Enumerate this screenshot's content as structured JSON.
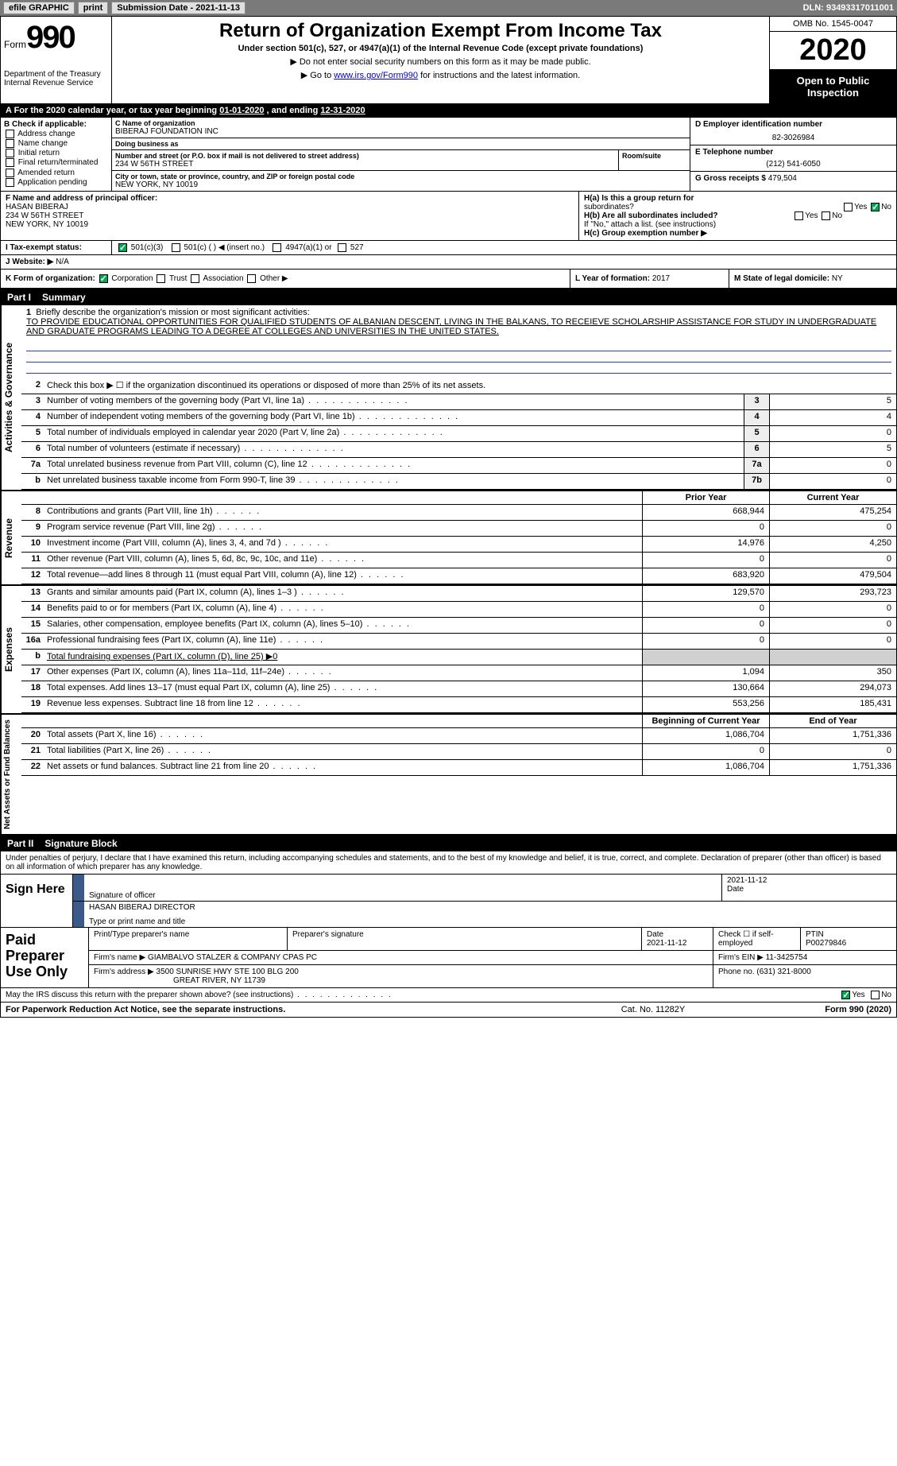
{
  "topbar": {
    "efile": "efile GRAPHIC",
    "print": "print",
    "sub_lbl": "Submission Date - ",
    "sub_date": "2021-11-13",
    "dln_lbl": "DLN:",
    "dln": "93493317011001"
  },
  "header": {
    "form_word": "Form",
    "form_num": "990",
    "dept": "Department of the Treasury",
    "irs": "Internal Revenue Service",
    "title": "Return of Organization Exempt From Income Tax",
    "subtitle": "Under section 501(c), 527, or 4947(a)(1) of the Internal Revenue Code (except private foundations)",
    "note1": "▶ Do not enter social security numbers on this form as it may be made public.",
    "note2_pre": "▶ Go to ",
    "note2_link": "www.irs.gov/Form990",
    "note2_post": " for instructions and the latest information.",
    "omb": "OMB No. 1545-0047",
    "year": "2020",
    "inspection": "Open to Public Inspection"
  },
  "period": {
    "label_a": "A For the 2020 calendar year, or tax year beginning ",
    "begin": "01-01-2020",
    "mid": " , and ending ",
    "end": "12-31-2020"
  },
  "box_b": {
    "hdr": "B Check if applicable:",
    "opts": [
      "Address change",
      "Name change",
      "Initial return",
      "Final return/terminated",
      "Amended return",
      "Application pending"
    ]
  },
  "box_c": {
    "lbl": "C Name of organization",
    "name": "BIBERAJ FOUNDATION INC",
    "dba_lbl": "Doing business as",
    "dba": "",
    "addr_lbl": "Number and street (or P.O. box if mail is not delivered to street address)",
    "room_lbl": "Room/suite",
    "addr": "234 W 56TH STREET",
    "city_lbl": "City or town, state or province, country, and ZIP or foreign postal code",
    "city": "NEW YORK, NY  10019"
  },
  "box_d": {
    "lbl": "D Employer identification number",
    "ein": "82-3026984"
  },
  "box_e": {
    "lbl": "E Telephone number",
    "tel": "(212) 541-6050"
  },
  "box_g": {
    "lbl": "G Gross receipts $",
    "amt": "479,504"
  },
  "box_f": {
    "lbl": "F Name and address of principal officer:",
    "name": "HASAN BIBERAJ",
    "addr1": "234 W 56TH STREET",
    "addr2": "NEW YORK, NY  10019"
  },
  "box_h": {
    "a_lbl": "H(a)  Is this a group return for",
    "a_lbl2": "subordinates?",
    "a_yes": "Yes",
    "a_no": "No",
    "b_lbl": "H(b)  Are all subordinates included?",
    "b_yes": "Yes",
    "b_no": "No",
    "b_note": "If \"No,\" attach a list. (see instructions)",
    "c_lbl": "H(c)  Group exemption number ▶"
  },
  "row_i": {
    "lbl": "I  Tax-exempt status:",
    "o1": "501(c)(3)",
    "o2": "501(c) (  ) ◀ (insert no.)",
    "o3": "4947(a)(1) or",
    "o4": "527"
  },
  "row_j": {
    "lbl": "J  Website: ▶",
    "val": "N/A"
  },
  "row_k": {
    "lbl": "K Form of organization:",
    "o1": "Corporation",
    "o2": "Trust",
    "o3": "Association",
    "o4": "Other ▶",
    "l_lbl": "L Year of formation:",
    "l_val": "2017",
    "m_lbl": "M State of legal domicile:",
    "m_val": "NY"
  },
  "part1": {
    "num": "Part I",
    "title": "Summary"
  },
  "mission": {
    "num": "1",
    "lbl": "Briefly describe the organization's mission or most significant activities:",
    "text": "TO PROVIDE EDUCATIONAL OPPORTUNITIES FOR QUALIFIED STUDENTS OF ALBANIAN DESCENT, LIVING IN THE BALKANS, TO RECEIEVE SCHOLARSHIP ASSISTANCE FOR STUDY IN UNDERGRADUATE AND GRADUATE PROGRAMS LEADING TO A DEGREE AT COLLEGES AND UNIVERSITIES IN THE UNITED STATES."
  },
  "gov_lines": [
    {
      "n": "2",
      "t": "Check this box ▶ ☐ if the organization discontinued its operations or disposed of more than 25% of its net assets."
    },
    {
      "n": "3",
      "t": "Number of voting members of the governing body (Part VI, line 1a)",
      "box": "3",
      "v": "5"
    },
    {
      "n": "4",
      "t": "Number of independent voting members of the governing body (Part VI, line 1b)",
      "box": "4",
      "v": "4"
    },
    {
      "n": "5",
      "t": "Total number of individuals employed in calendar year 2020 (Part V, line 2a)",
      "box": "5",
      "v": "0"
    },
    {
      "n": "6",
      "t": "Total number of volunteers (estimate if necessary)",
      "box": "6",
      "v": "5"
    },
    {
      "n": "7a",
      "t": "Total unrelated business revenue from Part VIII, column (C), line 12",
      "box": "7a",
      "v": "0"
    },
    {
      "n": "b",
      "t": "Net unrelated business taxable income from Form 990-T, line 39",
      "box": "7b",
      "v": "0"
    }
  ],
  "side_labels": {
    "ag": "Activities & Governance",
    "rev": "Revenue",
    "exp": "Expenses",
    "na": "Net Assets or Fund Balances"
  },
  "col_hdrs": {
    "prior": "Prior Year",
    "current": "Current Year",
    "bocy": "Beginning of Current Year",
    "eoy": "End of Year"
  },
  "rev_lines": [
    {
      "n": "8",
      "t": "Contributions and grants (Part VIII, line 1h)",
      "p": "668,944",
      "c": "475,254"
    },
    {
      "n": "9",
      "t": "Program service revenue (Part VIII, line 2g)",
      "p": "0",
      "c": "0"
    },
    {
      "n": "10",
      "t": "Investment income (Part VIII, column (A), lines 3, 4, and 7d )",
      "p": "14,976",
      "c": "4,250"
    },
    {
      "n": "11",
      "t": "Other revenue (Part VIII, column (A), lines 5, 6d, 8c, 9c, 10c, and 11e)",
      "p": "0",
      "c": "0"
    },
    {
      "n": "12",
      "t": "Total revenue—add lines 8 through 11 (must equal Part VIII, column (A), line 12)",
      "p": "683,920",
      "c": "479,504"
    }
  ],
  "exp_lines": [
    {
      "n": "13",
      "t": "Grants and similar amounts paid (Part IX, column (A), lines 1–3 )",
      "p": "129,570",
      "c": "293,723"
    },
    {
      "n": "14",
      "t": "Benefits paid to or for members (Part IX, column (A), line 4)",
      "p": "0",
      "c": "0"
    },
    {
      "n": "15",
      "t": "Salaries, other compensation, employee benefits (Part IX, column (A), lines 5–10)",
      "p": "0",
      "c": "0"
    },
    {
      "n": "16a",
      "t": "Professional fundraising fees (Part IX, column (A), line 11e)",
      "p": "0",
      "c": "0"
    },
    {
      "n": "b",
      "t": "Total fundraising expenses (Part IX, column (D), line 25) ▶0",
      "p": "",
      "c": "",
      "nocols": true
    },
    {
      "n": "17",
      "t": "Other expenses (Part IX, column (A), lines 11a–11d, 11f–24e)",
      "p": "1,094",
      "c": "350"
    },
    {
      "n": "18",
      "t": "Total expenses. Add lines 13–17 (must equal Part IX, column (A), line 25)",
      "p": "130,664",
      "c": "294,073"
    },
    {
      "n": "19",
      "t": "Revenue less expenses. Subtract line 18 from line 12",
      "p": "553,256",
      "c": "185,431"
    }
  ],
  "na_lines": [
    {
      "n": "20",
      "t": "Total assets (Part X, line 16)",
      "p": "1,086,704",
      "c": "1,751,336"
    },
    {
      "n": "21",
      "t": "Total liabilities (Part X, line 26)",
      "p": "0",
      "c": "0"
    },
    {
      "n": "22",
      "t": "Net assets or fund balances. Subtract line 21 from line 20",
      "p": "1,086,704",
      "c": "1,751,336"
    }
  ],
  "part2": {
    "num": "Part II",
    "title": "Signature Block"
  },
  "sig": {
    "decl": "Under penalties of perjury, I declare that I have examined this return, including accompanying schedules and statements, and to the best of my knowledge and belief, it is true, correct, and complete. Declaration of preparer (other than officer) is based on all information of which preparer has any knowledge.",
    "sign_here": "Sign Here",
    "sig_lbl": "Signature of officer",
    "date_lbl": "Date",
    "date": "2021-11-12",
    "name": "HASAN BIBERAJ DIRECTOR",
    "name_lbl": "Type or print name and title"
  },
  "prep": {
    "hdr": "Paid Preparer Use Only",
    "pn_lbl": "Print/Type preparer's name",
    "ps_lbl": "Preparer's signature",
    "pd_lbl": "Date",
    "pd": "2021-11-12",
    "ck_lbl": "Check ☐ if self-employed",
    "ptin_lbl": "PTIN",
    "ptin": "P00279846",
    "firm_name_lbl": "Firm's name    ▶",
    "firm_name": "GIAMBALVO STALZER & COMPANY CPAS PC",
    "firm_ein_lbl": "Firm's EIN ▶",
    "firm_ein": "11-3425754",
    "firm_addr_lbl": "Firm's address ▶",
    "firm_addr1": "3500 SUNRISE HWY STE 100 BLG 200",
    "firm_addr2": "GREAT RIVER, NY  11739",
    "phone_lbl": "Phone no.",
    "phone": "(631) 321-8000"
  },
  "discuss": {
    "q": "May the IRS discuss this return with the preparer shown above? (see instructions)",
    "yes": "Yes",
    "no": "No"
  },
  "footer": {
    "pra": "For Paperwork Reduction Act Notice, see the separate instructions.",
    "cat": "Cat. No. 11282Y",
    "form": "Form 990 (2020)"
  }
}
